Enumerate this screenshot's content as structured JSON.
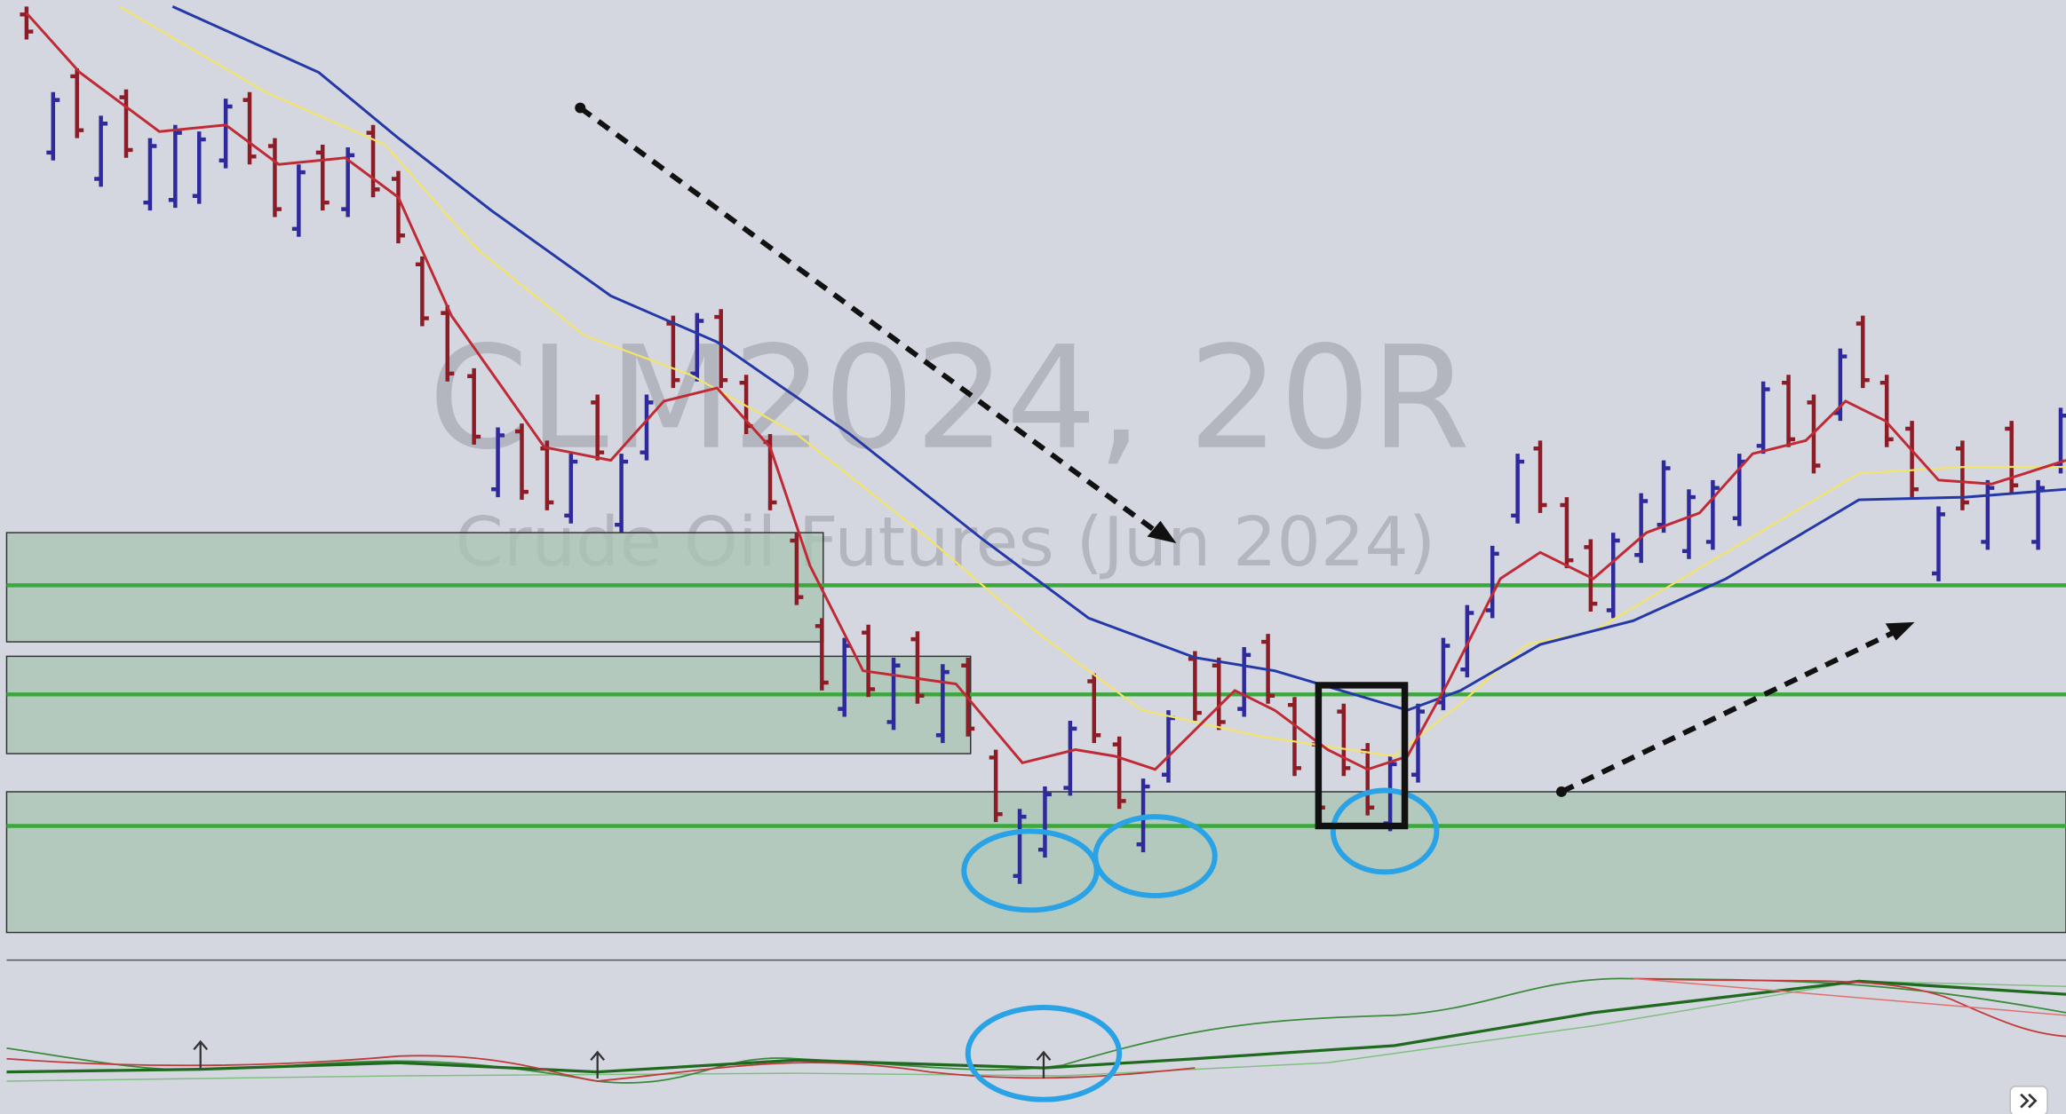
{
  "watermark": {
    "symbol": "CLM2024, 20R",
    "description": "Crude Oil Futures (Jun 2024)"
  }
}
